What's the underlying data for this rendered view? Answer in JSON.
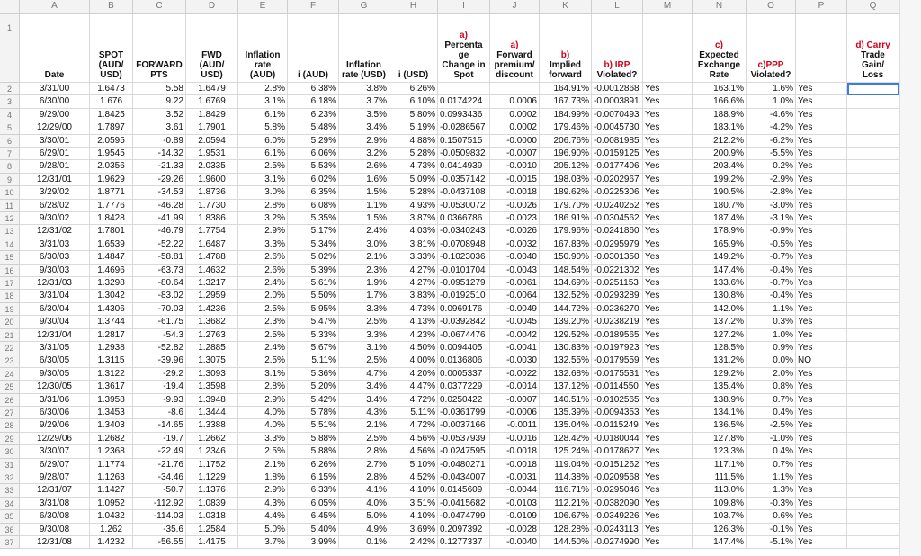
{
  "accent_color": "#d0021b",
  "column_letters": [
    "A",
    "B",
    "C",
    "D",
    "E",
    "F",
    "G",
    "H",
    "I",
    "J",
    "K",
    "L",
    "M",
    "N",
    "O",
    "P",
    "Q"
  ],
  "row_numbers": [
    1,
    2,
    3,
    4,
    5,
    6,
    7,
    8,
    9,
    10,
    11,
    12,
    13,
    14,
    15,
    16,
    17,
    18,
    19,
    20,
    21,
    22,
    23,
    24,
    25,
    26,
    27,
    28,
    29,
    30,
    31,
    32,
    33,
    34,
    35,
    36,
    37
  ],
  "headers": [
    {
      "lines": [
        "Date"
      ],
      "accent": 0
    },
    {
      "lines": [
        "SPOT",
        "(AUD/",
        "USD)"
      ],
      "accent": 0
    },
    {
      "lines": [
        "FORWARD",
        "PTS"
      ],
      "accent": 0
    },
    {
      "lines": [
        "FWD",
        "(AUD/",
        "USD)"
      ],
      "accent": 0
    },
    {
      "lines": [
        "Inflation",
        "rate",
        "(AUD)"
      ],
      "accent": 0
    },
    {
      "lines": [
        "i (AUD)"
      ],
      "accent": 0
    },
    {
      "lines": [
        "Inflation",
        "rate (USD)"
      ],
      "accent": 0
    },
    {
      "lines": [
        "i (USD)"
      ],
      "accent": 0
    },
    {
      "lines": [
        "a)",
        "Percenta",
        "ge",
        "Change in",
        "Spot"
      ],
      "accent": 1
    },
    {
      "lines": [
        "a)",
        "Forward",
        "premium/",
        "discount"
      ],
      "accent": 1
    },
    {
      "lines": [
        "b)",
        "Implied",
        "forward"
      ],
      "accent": 1
    },
    {
      "lines": [
        "b) IRP",
        "Violated?"
      ],
      "accent": 1
    },
    null,
    {
      "lines": [
        "c)",
        "Expected",
        "Exchange",
        "Rate"
      ],
      "accent": 1
    },
    {
      "lines": [
        "c)PPP",
        "Violated?"
      ],
      "accent": 1
    },
    null,
    {
      "lines": [
        "d) Carry",
        "Trade",
        "Gain/",
        "Loss"
      ],
      "accent": 1
    }
  ],
  "rows": [
    [
      "3/31/00",
      "1.6473",
      "5.58",
      "1.6479",
      "2.8%",
      "6.38%",
      "3.8%",
      "6.26%",
      null,
      null,
      "164.91%",
      "-0.0012868",
      "Yes",
      "163.1%",
      "1.6%",
      "Yes"
    ],
    [
      "6/30/00",
      "1.676",
      "9.22",
      "1.6769",
      "3.1%",
      "6.18%",
      "3.7%",
      "6.10%",
      "0.0174224",
      "0.0006",
      "167.73%",
      "-0.0003891",
      "Yes",
      "166.6%",
      "1.0%",
      "Yes"
    ],
    [
      "9/29/00",
      "1.8425",
      "3.52",
      "1.8429",
      "6.1%",
      "6.23%",
      "3.5%",
      "5.80%",
      "0.0993436",
      "0.0002",
      "184.99%",
      "-0.0070493",
      "Yes",
      "188.9%",
      "-4.6%",
      "Yes"
    ],
    [
      "12/29/00",
      "1.7897",
      "3.61",
      "1.7901",
      "5.8%",
      "5.48%",
      "3.4%",
      "5.19%",
      "-0.0286567",
      "0.0002",
      "179.46%",
      "-0.0045730",
      "Yes",
      "183.1%",
      "-4.2%",
      "Yes"
    ],
    [
      "3/30/01",
      "2.0595",
      "-0.89",
      "2.0594",
      "6.0%",
      "5.29%",
      "2.9%",
      "4.88%",
      "0.1507515",
      "-0.0000",
      "206.76%",
      "-0.0081985",
      "Yes",
      "212.2%",
      "-6.2%",
      "Yes"
    ],
    [
      "6/29/01",
      "1.9545",
      "-14.32",
      "1.9531",
      "6.1%",
      "6.06%",
      "3.2%",
      "5.28%",
      "-0.0509832",
      "-0.0007",
      "196.90%",
      "-0.0159125",
      "Yes",
      "200.9%",
      "-5.5%",
      "Yes"
    ],
    [
      "9/28/01",
      "2.0356",
      "-21.33",
      "2.0335",
      "2.5%",
      "5.53%",
      "2.6%",
      "4.73%",
      "0.0414939",
      "-0.0010",
      "205.12%",
      "-0.0177406",
      "Yes",
      "203.4%",
      "0.2%",
      "Yes"
    ],
    [
      "12/31/01",
      "1.9629",
      "-29.26",
      "1.9600",
      "3.1%",
      "6.02%",
      "1.6%",
      "5.09%",
      "-0.0357142",
      "-0.0015",
      "198.03%",
      "-0.0202967",
      "Yes",
      "199.2%",
      "-2.9%",
      "Yes"
    ],
    [
      "3/29/02",
      "1.8771",
      "-34.53",
      "1.8736",
      "3.0%",
      "6.35%",
      "1.5%",
      "5.28%",
      "-0.0437108",
      "-0.0018",
      "189.62%",
      "-0.0225306",
      "Yes",
      "190.5%",
      "-2.8%",
      "Yes"
    ],
    [
      "6/28/02",
      "1.7776",
      "-46.28",
      "1.7730",
      "2.8%",
      "6.08%",
      "1.1%",
      "4.93%",
      "-0.0530072",
      "-0.0026",
      "179.70%",
      "-0.0240252",
      "Yes",
      "180.7%",
      "-3.0%",
      "Yes"
    ],
    [
      "9/30/02",
      "1.8428",
      "-41.99",
      "1.8386",
      "3.2%",
      "5.35%",
      "1.5%",
      "3.87%",
      "0.0366786",
      "-0.0023",
      "186.91%",
      "-0.0304562",
      "Yes",
      "187.4%",
      "-3.1%",
      "Yes"
    ],
    [
      "12/31/02",
      "1.7801",
      "-46.79",
      "1.7754",
      "2.9%",
      "5.17%",
      "2.4%",
      "4.03%",
      "-0.0340243",
      "-0.0026",
      "179.96%",
      "-0.0241860",
      "Yes",
      "178.9%",
      "-0.9%",
      "Yes"
    ],
    [
      "3/31/03",
      "1.6539",
      "-52.22",
      "1.6487",
      "3.3%",
      "5.34%",
      "3.0%",
      "3.81%",
      "-0.0708948",
      "-0.0032",
      "167.83%",
      "-0.0295979",
      "Yes",
      "165.9%",
      "-0.5%",
      "Yes"
    ],
    [
      "6/30/03",
      "1.4847",
      "-58.81",
      "1.4788",
      "2.6%",
      "5.02%",
      "2.1%",
      "3.33%",
      "-0.1023036",
      "-0.0040",
      "150.90%",
      "-0.0301350",
      "Yes",
      "149.2%",
      "-0.7%",
      "Yes"
    ],
    [
      "9/30/03",
      "1.4696",
      "-63.73",
      "1.4632",
      "2.6%",
      "5.39%",
      "2.3%",
      "4.27%",
      "-0.0101704",
      "-0.0043",
      "148.54%",
      "-0.0221302",
      "Yes",
      "147.4%",
      "-0.4%",
      "Yes"
    ],
    [
      "12/31/03",
      "1.3298",
      "-80.64",
      "1.3217",
      "2.4%",
      "5.61%",
      "1.9%",
      "4.27%",
      "-0.0951279",
      "-0.0061",
      "134.69%",
      "-0.0251153",
      "Yes",
      "133.6%",
      "-0.7%",
      "Yes"
    ],
    [
      "3/31/04",
      "1.3042",
      "-83.02",
      "1.2959",
      "2.0%",
      "5.50%",
      "1.7%",
      "3.83%",
      "-0.0192510",
      "-0.0064",
      "132.52%",
      "-0.0293289",
      "Yes",
      "130.8%",
      "-0.4%",
      "Yes"
    ],
    [
      "6/30/04",
      "1.4306",
      "-70.03",
      "1.4236",
      "2.5%",
      "5.95%",
      "3.3%",
      "4.73%",
      "0.0969176",
      "-0.0049",
      "144.72%",
      "-0.0236270",
      "Yes",
      "142.0%",
      "1.1%",
      "Yes"
    ],
    [
      "9/30/04",
      "1.3744",
      "-61.75",
      "1.3682",
      "2.3%",
      "5.47%",
      "2.5%",
      "4.13%",
      "-0.0392842",
      "-0.0045",
      "139.20%",
      "-0.0238219",
      "Yes",
      "137.2%",
      "0.3%",
      "Yes"
    ],
    [
      "12/31/04",
      "1.2817",
      "-54.3",
      "1.2763",
      "2.5%",
      "5.33%",
      "3.3%",
      "4.23%",
      "-0.0674476",
      "-0.0042",
      "129.52%",
      "-0.0189565",
      "Yes",
      "127.2%",
      "1.0%",
      "Yes"
    ],
    [
      "3/31/05",
      "1.2938",
      "-52.82",
      "1.2885",
      "2.4%",
      "5.67%",
      "3.1%",
      "4.50%",
      "0.0094405",
      "-0.0041",
      "130.83%",
      "-0.0197923",
      "Yes",
      "128.5%",
      "0.9%",
      "Yes"
    ],
    [
      "6/30/05",
      "1.3115",
      "-39.96",
      "1.3075",
      "2.5%",
      "5.11%",
      "2.5%",
      "4.00%",
      "0.0136806",
      "-0.0030",
      "132.55%",
      "-0.0179559",
      "Yes",
      "131.2%",
      "0.0%",
      "NO"
    ],
    [
      "9/30/05",
      "1.3122",
      "-29.2",
      "1.3093",
      "3.1%",
      "5.36%",
      "4.7%",
      "4.20%",
      "0.0005337",
      "-0.0022",
      "132.68%",
      "-0.0175531",
      "Yes",
      "129.2%",
      "2.0%",
      "Yes"
    ],
    [
      "12/30/05",
      "1.3617",
      "-19.4",
      "1.3598",
      "2.8%",
      "5.20%",
      "3.4%",
      "4.47%",
      "0.0377229",
      "-0.0014",
      "137.12%",
      "-0.0114550",
      "Yes",
      "135.4%",
      "0.8%",
      "Yes"
    ],
    [
      "3/31/06",
      "1.3958",
      "-9.93",
      "1.3948",
      "2.9%",
      "5.42%",
      "3.4%",
      "4.72%",
      "0.0250422",
      "-0.0007",
      "140.51%",
      "-0.0102565",
      "Yes",
      "138.9%",
      "0.7%",
      "Yes"
    ],
    [
      "6/30/06",
      "1.3453",
      "-8.6",
      "1.3444",
      "4.0%",
      "5.78%",
      "4.3%",
      "5.11%",
      "-0.0361799",
      "-0.0006",
      "135.39%",
      "-0.0094353",
      "Yes",
      "134.1%",
      "0.4%",
      "Yes"
    ],
    [
      "9/29/06",
      "1.3403",
      "-14.65",
      "1.3388",
      "4.0%",
      "5.51%",
      "2.1%",
      "4.72%",
      "-0.0037166",
      "-0.0011",
      "135.04%",
      "-0.0115249",
      "Yes",
      "136.5%",
      "-2.5%",
      "Yes"
    ],
    [
      "12/29/06",
      "1.2682",
      "-19.7",
      "1.2662",
      "3.3%",
      "5.88%",
      "2.5%",
      "4.56%",
      "-0.0537939",
      "-0.0016",
      "128.42%",
      "-0.0180044",
      "Yes",
      "127.8%",
      "-1.0%",
      "Yes"
    ],
    [
      "3/30/07",
      "1.2368",
      "-22.49",
      "1.2346",
      "2.5%",
      "5.88%",
      "2.8%",
      "4.56%",
      "-0.0247595",
      "-0.0018",
      "125.24%",
      "-0.0178627",
      "Yes",
      "123.3%",
      "0.4%",
      "Yes"
    ],
    [
      "6/29/07",
      "1.1774",
      "-21.76",
      "1.1752",
      "2.1%",
      "6.26%",
      "2.7%",
      "5.10%",
      "-0.0480271",
      "-0.0018",
      "119.04%",
      "-0.0151262",
      "Yes",
      "117.1%",
      "0.7%",
      "Yes"
    ],
    [
      "9/28/07",
      "1.1263",
      "-34.46",
      "1.1229",
      "1.8%",
      "6.15%",
      "2.8%",
      "4.52%",
      "-0.0434007",
      "-0.0031",
      "114.38%",
      "-0.0209568",
      "Yes",
      "111.5%",
      "1.1%",
      "Yes"
    ],
    [
      "12/31/07",
      "1.1427",
      "-50.7",
      "1.1376",
      "2.9%",
      "6.33%",
      "4.1%",
      "4.10%",
      "0.0145609",
      "-0.0044",
      "116.71%",
      "-0.0295046",
      "Yes",
      "113.0%",
      "1.3%",
      "Yes"
    ],
    [
      "3/31/08",
      "1.0952",
      "-112.92",
      "1.0839",
      "4.3%",
      "6.05%",
      "4.0%",
      "3.51%",
      "-0.0415682",
      "-0.0103",
      "112.21%",
      "-0.0382090",
      "Yes",
      "109.8%",
      "-0.3%",
      "Yes"
    ],
    [
      "6/30/08",
      "1.0432",
      "-114.03",
      "1.0318",
      "4.4%",
      "6.45%",
      "5.0%",
      "4.10%",
      "-0.0474799",
      "-0.0109",
      "106.67%",
      "-0.0349226",
      "Yes",
      "103.7%",
      "0.6%",
      "Yes"
    ],
    [
      "9/30/08",
      "1.262",
      "-35.6",
      "1.2584",
      "5.0%",
      "5.40%",
      "4.9%",
      "3.69%",
      "0.2097392",
      "-0.0028",
      "128.28%",
      "-0.0243113",
      "Yes",
      "126.3%",
      "-0.1%",
      "Yes"
    ],
    [
      "12/31/08",
      "1.4232",
      "-56.55",
      "1.4175",
      "3.7%",
      "3.99%",
      "0.1%",
      "2.42%",
      "0.1277337",
      "-0.0040",
      "144.50%",
      "-0.0274990",
      "Yes",
      "147.4%",
      "-5.1%",
      "Yes"
    ]
  ]
}
